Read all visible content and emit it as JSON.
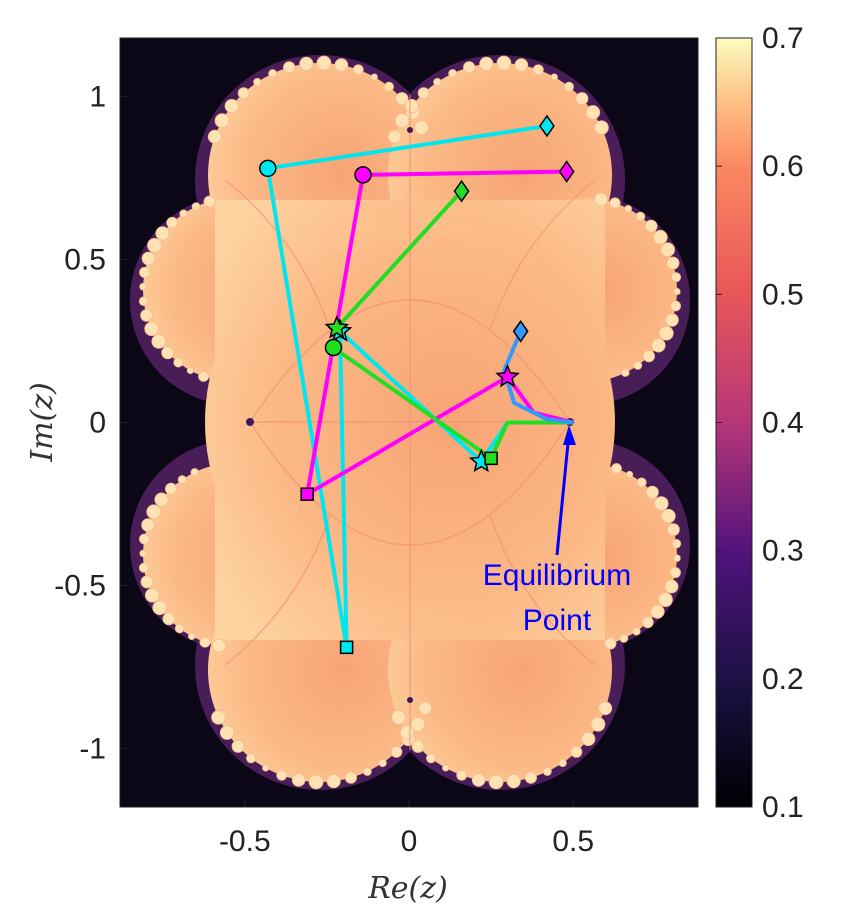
{
  "chart_data": {
    "type": "line",
    "xlabel": "Re(z)",
    "ylabel": "Im(z)",
    "xlim": [
      -0.88,
      0.88
    ],
    "ylim": [
      -1.18,
      1.18
    ],
    "x_ticks": [
      -0.5,
      0,
      0.5
    ],
    "x_tick_labels": [
      "-0.5",
      "0",
      "0.5"
    ],
    "y_ticks": [
      -1,
      -0.5,
      0,
      0.5,
      1
    ],
    "y_tick_labels": [
      "-1",
      "-0.5",
      "0",
      "0.5",
      "1"
    ],
    "colorbar": {
      "range": [
        0.1,
        0.7
      ],
      "ticks": [
        0.1,
        0.2,
        0.3,
        0.4,
        0.5,
        0.6,
        0.7
      ],
      "tick_labels": [
        "0.1",
        "0.2",
        "0.3",
        "0.4",
        "0.5",
        "0.6",
        "0.7"
      ],
      "colormap": "magma"
    },
    "grid": false,
    "background": "fractal heatmap of |Im|/Re of z, high value (0.6-0.7) inside the quasi-circular region, low value (0.1) outside",
    "series": [
      {
        "color": "#00e5ee",
        "points": [
          {
            "x": 0.42,
            "y": 0.91,
            "marker": "diamond"
          },
          {
            "x": -0.43,
            "y": 0.78,
            "marker": "circle"
          },
          {
            "x": -0.19,
            "y": -0.69,
            "marker": "square"
          },
          {
            "x": -0.21,
            "y": 0.28,
            "marker": "star"
          },
          {
            "x": 0.22,
            "y": -0.12,
            "marker": "star"
          },
          {
            "x": 0.3,
            "y": 0.0
          },
          {
            "x": 0.5,
            "y": 0.0
          }
        ]
      },
      {
        "color": "#ff00ff",
        "points": [
          {
            "x": 0.48,
            "y": 0.77,
            "marker": "diamond"
          },
          {
            "x": -0.14,
            "y": 0.76,
            "marker": "circle"
          },
          {
            "x": -0.31,
            "y": -0.22,
            "marker": "square"
          },
          {
            "x": 0.3,
            "y": 0.14,
            "marker": "star"
          },
          {
            "x": 0.38,
            "y": 0.03
          },
          {
            "x": 0.5,
            "y": 0.0
          }
        ]
      },
      {
        "color": "#22dd22",
        "points": [
          {
            "x": 0.16,
            "y": 0.71,
            "marker": "diamond"
          },
          {
            "x": -0.22,
            "y": 0.29,
            "marker": "star"
          },
          {
            "x": -0.23,
            "y": 0.23,
            "marker": "circle"
          },
          {
            "x": 0.25,
            "y": -0.11,
            "marker": "square"
          },
          {
            "x": 0.3,
            "y": 0.0
          },
          {
            "x": 0.5,
            "y": 0.0
          }
        ]
      },
      {
        "color": "#3399ff",
        "points": [
          {
            "x": 0.34,
            "y": 0.28,
            "marker": "diamond"
          },
          {
            "x": 0.29,
            "y": 0.16
          },
          {
            "x": 0.32,
            "y": 0.06
          },
          {
            "x": 0.42,
            "y": 0.01
          },
          {
            "x": 0.5,
            "y": 0.0
          }
        ]
      }
    ],
    "annotations": [
      {
        "text_lines": [
          "Equilibrium",
          "Point"
        ],
        "arrow_to": {
          "x": 0.5,
          "y": 0.0
        }
      }
    ]
  }
}
